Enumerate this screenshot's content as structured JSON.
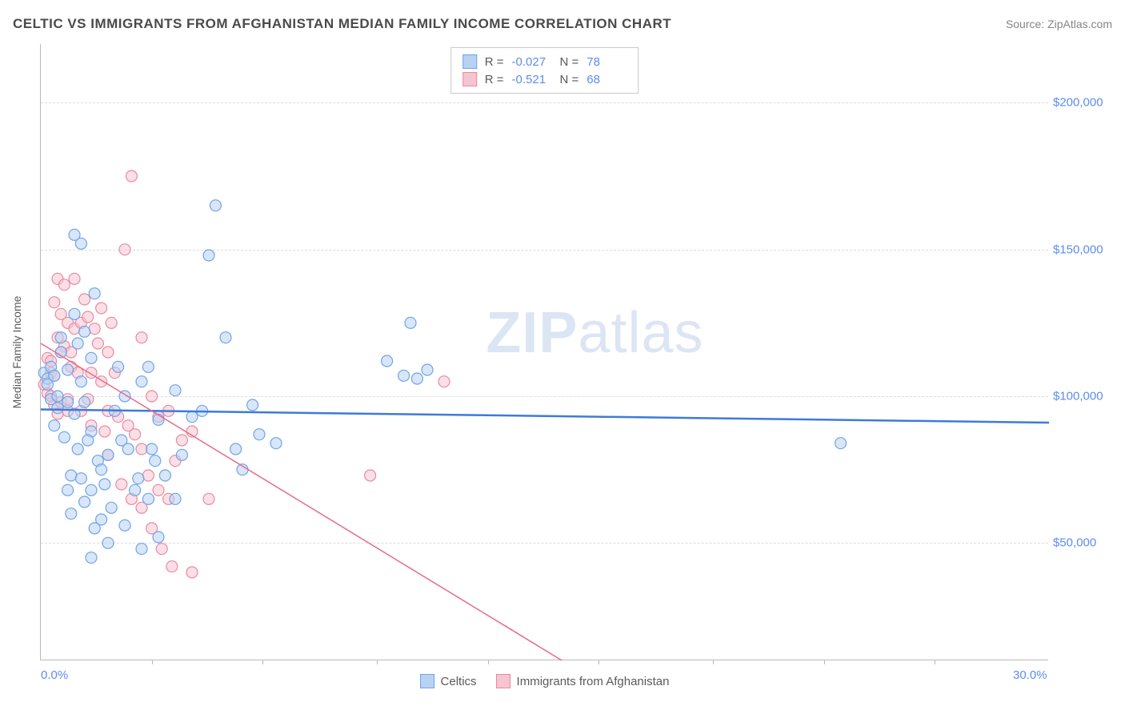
{
  "title": "CELTIC VS IMMIGRANTS FROM AFGHANISTAN MEDIAN FAMILY INCOME CORRELATION CHART",
  "source": "Source: ZipAtlas.com",
  "chart": {
    "type": "scatter",
    "y_axis_label": "Median Family Income",
    "watermark_bold": "ZIP",
    "watermark_rest": "atlas",
    "background_color": "#ffffff",
    "grid_color": "#dcdcdc",
    "axis_color": "#b8b8b8",
    "xlim": [
      0,
      30
    ],
    "ylim": [
      10000,
      220000
    ],
    "x_ticks": [
      {
        "pos": 0.0,
        "label": "0.0%"
      },
      {
        "pos": 30.0,
        "label": "30.0%"
      }
    ],
    "x_tick_marks": [
      3.3,
      6.6,
      10.0,
      13.3,
      16.6,
      20.0,
      23.3,
      26.6
    ],
    "y_ticks": [
      {
        "pos": 50000,
        "label": "$50,000"
      },
      {
        "pos": 100000,
        "label": "$100,000"
      },
      {
        "pos": 150000,
        "label": "$150,000"
      },
      {
        "pos": 200000,
        "label": "$200,000"
      }
    ],
    "series": [
      {
        "name": "Celtics",
        "color_stroke": "#6fa4e8",
        "color_fill": "#b8d2f2",
        "fill_opacity": 0.55,
        "marker_radius": 7,
        "R": "-0.027",
        "N": "78",
        "trend_line": {
          "x1": 0,
          "y1": 95500,
          "x2": 30,
          "y2": 91000,
          "stroke": "#3d7bd9",
          "stroke_width": 2.5
        },
        "points": [
          [
            0.1,
            108000
          ],
          [
            0.2,
            106000
          ],
          [
            0.3,
            110000
          ],
          [
            0.2,
            104000
          ],
          [
            0.4,
            107000
          ],
          [
            0.3,
            99000
          ],
          [
            0.5,
            100000
          ],
          [
            0.6,
            115000
          ],
          [
            0.5,
            96000
          ],
          [
            0.8,
            109000
          ],
          [
            1.0,
            155000
          ],
          [
            1.2,
            152000
          ],
          [
            1.6,
            135000
          ],
          [
            1.0,
            128000
          ],
          [
            1.3,
            122000
          ],
          [
            1.5,
            113000
          ],
          [
            1.2,
            105000
          ],
          [
            0.8,
            98000
          ],
          [
            1.0,
            94000
          ],
          [
            1.3,
            98000
          ],
          [
            1.5,
            88000
          ],
          [
            0.7,
            86000
          ],
          [
            1.1,
            82000
          ],
          [
            1.4,
            85000
          ],
          [
            1.7,
            78000
          ],
          [
            0.9,
            73000
          ],
          [
            1.2,
            72000
          ],
          [
            1.5,
            68000
          ],
          [
            1.8,
            75000
          ],
          [
            2.0,
            80000
          ],
          [
            2.2,
            95000
          ],
          [
            2.4,
            85000
          ],
          [
            2.6,
            82000
          ],
          [
            2.9,
            72000
          ],
          [
            3.2,
            65000
          ],
          [
            3.4,
            78000
          ],
          [
            3.7,
            73000
          ],
          [
            2.1,
            62000
          ],
          [
            1.8,
            58000
          ],
          [
            2.5,
            56000
          ],
          [
            2.0,
            50000
          ],
          [
            1.5,
            45000
          ],
          [
            3.0,
            48000
          ],
          [
            3.5,
            52000
          ],
          [
            4.0,
            65000
          ],
          [
            4.2,
            80000
          ],
          [
            4.5,
            93000
          ],
          [
            4.8,
            95000
          ],
          [
            5.2,
            165000
          ],
          [
            5.0,
            148000
          ],
          [
            5.5,
            120000
          ],
          [
            5.8,
            82000
          ],
          [
            6.0,
            75000
          ],
          [
            6.3,
            97000
          ],
          [
            6.5,
            87000
          ],
          [
            7.0,
            84000
          ],
          [
            11.0,
            125000
          ],
          [
            10.3,
            112000
          ],
          [
            10.8,
            107000
          ],
          [
            11.2,
            106000
          ],
          [
            11.5,
            109000
          ],
          [
            23.8,
            84000
          ],
          [
            2.3,
            110000
          ],
          [
            3.0,
            105000
          ],
          [
            3.5,
            92000
          ],
          [
            4.0,
            102000
          ],
          [
            0.8,
            68000
          ],
          [
            1.3,
            64000
          ],
          [
            1.9,
            70000
          ],
          [
            2.5,
            100000
          ],
          [
            3.2,
            110000
          ],
          [
            1.1,
            118000
          ],
          [
            0.9,
            60000
          ],
          [
            1.6,
            55000
          ],
          [
            2.8,
            68000
          ],
          [
            3.3,
            82000
          ],
          [
            0.6,
            120000
          ],
          [
            0.4,
            90000
          ]
        ]
      },
      {
        "name": "Immigrants from Afghanistan",
        "color_stroke": "#e88ba0",
        "color_fill": "#f5c5d1",
        "fill_opacity": 0.55,
        "marker_radius": 7,
        "R": "-0.521",
        "N": "68",
        "trend_line": {
          "x1": 0,
          "y1": 118000,
          "x2": 15.5,
          "y2": 10000,
          "stroke": "#e86b8a",
          "stroke_width": 1.5
        },
        "trend_line_dash_ext": {
          "x1": 13.8,
          "y1": 22000,
          "x2": 15.5,
          "y2": 10000
        },
        "points": [
          [
            0.2,
            113000
          ],
          [
            0.3,
            112000
          ],
          [
            0.1,
            104000
          ],
          [
            0.2,
            101000
          ],
          [
            0.3,
            108000
          ],
          [
            0.4,
            107000
          ],
          [
            0.5,
            140000
          ],
          [
            0.7,
            138000
          ],
          [
            0.4,
            132000
          ],
          [
            0.6,
            128000
          ],
          [
            0.8,
            125000
          ],
          [
            0.5,
            120000
          ],
          [
            0.7,
            117000
          ],
          [
            0.9,
            115000
          ],
          [
            0.3,
            100000
          ],
          [
            0.4,
            97000
          ],
          [
            0.5,
            94000
          ],
          [
            0.6,
            98000
          ],
          [
            0.8,
            99000
          ],
          [
            1.0,
            123000
          ],
          [
            1.2,
            125000
          ],
          [
            1.0,
            140000
          ],
          [
            1.4,
            127000
          ],
          [
            1.6,
            123000
          ],
          [
            1.8,
            130000
          ],
          [
            2.0,
            115000
          ],
          [
            1.5,
            108000
          ],
          [
            1.8,
            105000
          ],
          [
            2.2,
            108000
          ],
          [
            2.5,
            150000
          ],
          [
            2.7,
            175000
          ],
          [
            3.0,
            120000
          ],
          [
            3.3,
            100000
          ],
          [
            3.5,
            93000
          ],
          [
            3.8,
            95000
          ],
          [
            2.0,
            95000
          ],
          [
            2.3,
            93000
          ],
          [
            2.6,
            90000
          ],
          [
            2.8,
            87000
          ],
          [
            3.0,
            82000
          ],
          [
            3.2,
            73000
          ],
          [
            3.5,
            68000
          ],
          [
            3.8,
            65000
          ],
          [
            4.0,
            78000
          ],
          [
            4.2,
            85000
          ],
          [
            4.5,
            88000
          ],
          [
            2.4,
            70000
          ],
          [
            2.7,
            65000
          ],
          [
            3.0,
            62000
          ],
          [
            3.3,
            55000
          ],
          [
            3.6,
            48000
          ],
          [
            3.9,
            42000
          ],
          [
            4.5,
            40000
          ],
          [
            5.0,
            65000
          ],
          [
            9.8,
            73000
          ],
          [
            12.0,
            105000
          ],
          [
            1.2,
            95000
          ],
          [
            1.5,
            90000
          ],
          [
            1.9,
            88000
          ],
          [
            0.6,
            115000
          ],
          [
            0.9,
            110000
          ],
          [
            1.3,
            133000
          ],
          [
            1.7,
            118000
          ],
          [
            2.1,
            125000
          ],
          [
            1.1,
            108000
          ],
          [
            0.8,
            95000
          ],
          [
            1.4,
            99000
          ],
          [
            2.0,
            80000
          ]
        ]
      }
    ]
  }
}
